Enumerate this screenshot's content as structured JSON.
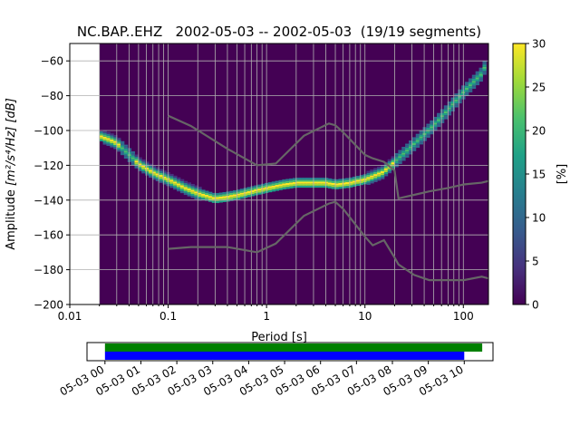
{
  "chart_data": [
    {
      "type": "heatmap",
      "title": "NC.BAP..EHZ   2002-05-03 -- 2002-05-03  (19/19 segments)",
      "xlabel": "Period [s]",
      "ylabel_main": "Amplitude ",
      "ylabel_math": "[m²/s⁴/Hz] [dB]",
      "x_scale": "log",
      "xlim": [
        0.01,
        180
      ],
      "ylim": [
        -200,
        -50
      ],
      "x_ticks": [
        {
          "value": 0.01,
          "label": "0.01"
        },
        {
          "value": 0.1,
          "label": "0.1"
        },
        {
          "value": 1,
          "label": "1"
        },
        {
          "value": 10,
          "label": "10"
        },
        {
          "value": 100,
          "label": "100"
        }
      ],
      "y_ticks": [
        -200,
        -180,
        -160,
        -140,
        -120,
        -100,
        -80,
        -60
      ],
      "grid": true,
      "data_start_period": 0.02,
      "colorbar": {
        "label": "[%]",
        "range": [
          0,
          30
        ],
        "ticks": [
          0,
          5,
          10,
          15,
          20,
          25,
          30
        ],
        "colors": [
          "#440154",
          "#46327e",
          "#365c8d",
          "#277f8e",
          "#1fa187",
          "#4ac16d",
          "#a0da39",
          "#fde725"
        ]
      },
      "mode_curve": {
        "period": [
          0.02,
          0.025,
          0.03,
          0.04,
          0.05,
          0.07,
          0.1,
          0.15,
          0.2,
          0.3,
          0.4,
          0.5,
          0.7,
          1,
          1.5,
          2,
          3,
          4,
          5,
          7,
          10,
          15,
          20,
          30,
          50,
          70,
          100,
          150,
          170
        ],
        "amplitude": [
          -103,
          -105,
          -107,
          -114,
          -119,
          -124,
          -128,
          -133,
          -136,
          -139,
          -138,
          -137,
          -135,
          -133,
          -131,
          -130,
          -130,
          -130,
          -131,
          -130,
          -128,
          -124,
          -118,
          -109,
          -97,
          -88,
          -78,
          -68,
          -62
        ]
      },
      "noise_models": [
        {
          "period": [
            0.1,
            0.17,
            0.4,
            0.8,
            1.24,
            2.4,
            4.3,
            5,
            6,
            10,
            12,
            15.6,
            20,
            21.9,
            31.6,
            45,
            70,
            101,
            154,
            180
          ],
          "amplitude": [
            -91.5,
            -97.4,
            -110.5,
            -120,
            -119,
            -103,
            -96,
            -97,
            -101,
            -114,
            -116,
            -118,
            -123,
            -139,
            -137,
            -135,
            -133,
            -131,
            -130,
            -129
          ]
        },
        {
          "period": [
            0.1,
            0.17,
            0.4,
            0.8,
            1.24,
            2.4,
            4.3,
            5,
            6,
            10,
            12,
            15.6,
            20,
            21.9,
            31.6,
            45,
            70,
            101,
            154,
            180
          ],
          "amplitude": [
            -168,
            -167,
            -167,
            -170,
            -165,
            -149,
            -142,
            -141,
            -145,
            -161,
            -166,
            -163,
            -173,
            -177,
            -183,
            -186,
            -186,
            -186,
            -184,
            -185
          ]
        }
      ]
    },
    {
      "type": "timeline",
      "x_tick_labels": [
        "05-03 00",
        "05-03 01",
        "05-03 02",
        "05-03 03",
        "05-03 04",
        "05-03 05",
        "05-03 06",
        "05-03 07",
        "05-03 08",
        "05-03 09",
        "05-03 10"
      ],
      "xlim_hours": [
        -0.5,
        10.8
      ],
      "bars": [
        {
          "color": "#008000",
          "start_hour": 0,
          "end_hour": 10.5
        },
        {
          "color": "#0000ff",
          "start_hour": 0,
          "end_hour": 10.0
        }
      ]
    }
  ]
}
